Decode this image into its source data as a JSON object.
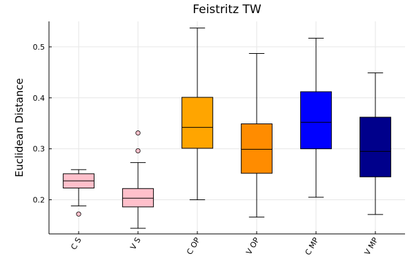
{
  "chart_data": {
    "type": "box",
    "title": "Feistritz TW",
    "xlabel": "",
    "ylabel": "Euclidean Distance",
    "ylim": [
      0.133,
      0.55
    ],
    "yticks": [
      0.2,
      0.3,
      0.4,
      0.5
    ],
    "ytick_labels": [
      "0.2",
      "0.3",
      "0.4",
      "0.5"
    ],
    "grid": true,
    "legend": false,
    "categories": [
      "C S",
      "V S",
      "C OP",
      "V OP",
      "C MP",
      "V MP"
    ],
    "boxes": [
      {
        "category": "C S",
        "color": "#ffc0cb",
        "whisker_low": 0.188,
        "q1": 0.223,
        "median": 0.237,
        "q3": 0.251,
        "whisker_high": 0.259,
        "outliers": [
          0.172
        ]
      },
      {
        "category": "V S",
        "color": "#ffc0cb",
        "whisker_low": 0.144,
        "q1": 0.186,
        "median": 0.203,
        "q3": 0.222,
        "whisker_high": 0.273,
        "outliers": [
          0.296,
          0.331
        ]
      },
      {
        "category": "C OP",
        "color": "#ffa500",
        "whisker_low": 0.2,
        "q1": 0.301,
        "median": 0.342,
        "q3": 0.401,
        "whisker_high": 0.537,
        "outliers": []
      },
      {
        "category": "V OP",
        "color": "#ff8c00",
        "whisker_low": 0.166,
        "q1": 0.252,
        "median": 0.299,
        "q3": 0.349,
        "whisker_high": 0.487,
        "outliers": []
      },
      {
        "category": "C MP",
        "color": "#0000ff",
        "whisker_low": 0.205,
        "q1": 0.3,
        "median": 0.352,
        "q3": 0.412,
        "whisker_high": 0.517,
        "outliers": []
      },
      {
        "category": "V MP",
        "color": "#00008b",
        "whisker_low": 0.171,
        "q1": 0.245,
        "median": 0.295,
        "q3": 0.362,
        "whisker_high": 0.449,
        "outliers": []
      }
    ]
  }
}
